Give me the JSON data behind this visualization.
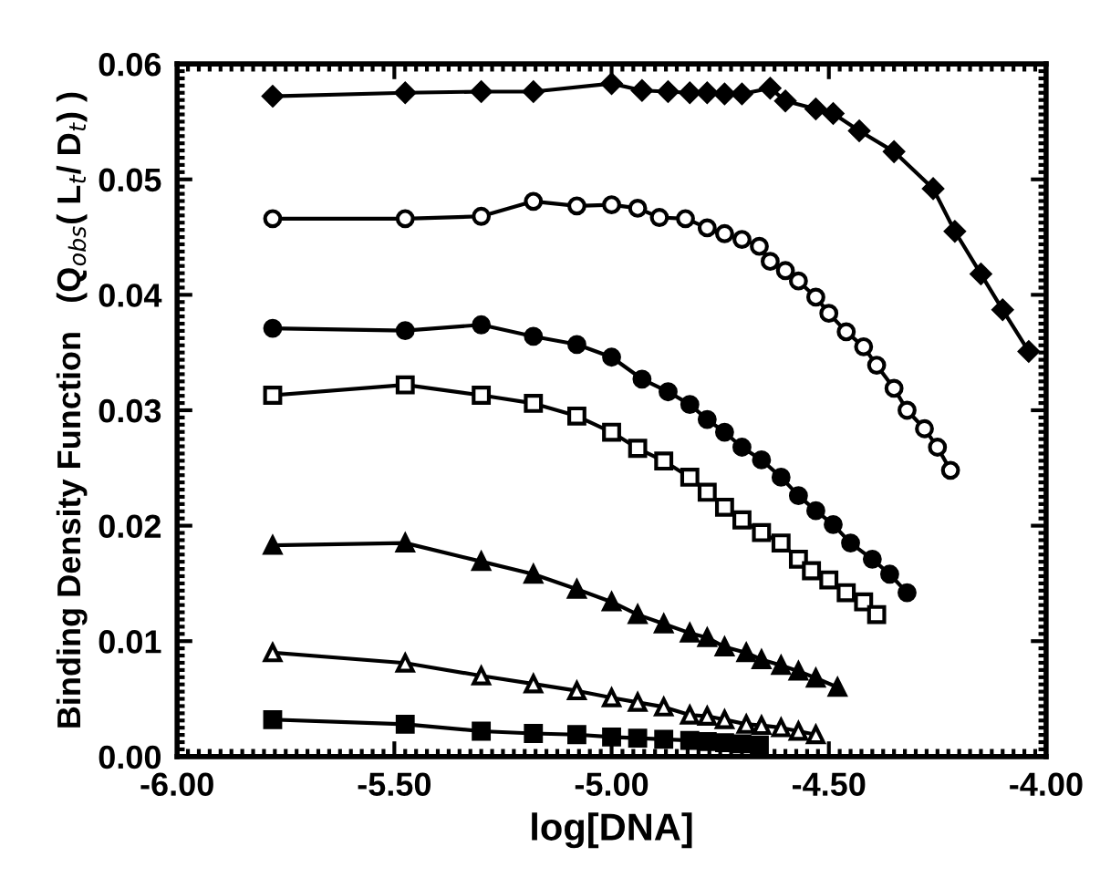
{
  "chart_data": {
    "type": "line",
    "xlabel": "log[DNA]",
    "ylabel": "Binding Density Function   (Q$_{obs}$( L$_{t}$/ D$_{t}$) )",
    "xlim": [
      -6.0,
      -4.0
    ],
    "ylim": [
      0.0,
      0.06
    ],
    "xticks": [
      {
        "value": -6.0,
        "label": "-6.00"
      },
      {
        "value": -5.5,
        "label": "-5.50"
      },
      {
        "value": -5.0,
        "label": "-5.00"
      },
      {
        "value": -4.5,
        "label": "-4.50"
      },
      {
        "value": -4.0,
        "label": "-4.00"
      }
    ],
    "yticks": [
      {
        "value": 0.0,
        "label": "0.00"
      },
      {
        "value": 0.01,
        "label": "0.01"
      },
      {
        "value": 0.02,
        "label": "0.02"
      },
      {
        "value": 0.03,
        "label": "0.03"
      },
      {
        "value": 0.04,
        "label": "0.04"
      },
      {
        "value": 0.05,
        "label": "0.05"
      },
      {
        "value": 0.06,
        "label": "0.06"
      }
    ],
    "grid": false,
    "line_style": "solid",
    "series": [
      {
        "color": "#000000",
        "marker": "diamond",
        "x": [
          -5.78,
          -5.475,
          -5.3,
          -5.18,
          -5.0,
          -4.93,
          -4.87,
          -4.82,
          -4.78,
          -4.74,
          -4.7,
          -4.635,
          -4.6,
          -4.53,
          -4.49,
          -4.43,
          -4.35,
          -4.26,
          -4.21,
          -4.15,
          -4.1,
          -4.04
        ],
        "values": [
          0.0572,
          0.0575,
          0.0576,
          0.0576,
          0.0583,
          0.0577,
          0.0576,
          0.0575,
          0.0575,
          0.0574,
          0.0574,
          0.0579,
          0.0568,
          0.0561,
          0.0557,
          0.0542,
          0.0524,
          0.0492,
          0.0455,
          0.0418,
          0.0387,
          0.0351
        ]
      },
      {
        "color": "#000000",
        "marker": "circle-open",
        "x": [
          -5.78,
          -5.475,
          -5.3,
          -5.18,
          -5.08,
          -5.0,
          -4.94,
          -4.89,
          -4.83,
          -4.78,
          -4.74,
          -4.7,
          -4.66,
          -4.635,
          -4.6,
          -4.57,
          -4.53,
          -4.5,
          -4.46,
          -4.42,
          -4.39,
          -4.35,
          -4.32,
          -4.28,
          -4.25,
          -4.22
        ],
        "values": [
          0.0466,
          0.0466,
          0.0468,
          0.0481,
          0.0477,
          0.0478,
          0.0475,
          0.0467,
          0.0466,
          0.0458,
          0.0453,
          0.0448,
          0.0442,
          0.0429,
          0.0421,
          0.0412,
          0.0398,
          0.0384,
          0.0368,
          0.0355,
          0.0339,
          0.0319,
          0.03,
          0.0284,
          0.0268,
          0.0248
        ]
      },
      {
        "color": "#000000",
        "marker": "circle",
        "x": [
          -5.78,
          -5.475,
          -5.3,
          -5.18,
          -5.08,
          -5.0,
          -4.93,
          -4.87,
          -4.82,
          -4.78,
          -4.74,
          -4.7,
          -4.655,
          -4.61,
          -4.57,
          -4.53,
          -4.49,
          -4.45,
          -4.4,
          -4.36,
          -4.32
        ],
        "values": [
          0.0371,
          0.0369,
          0.0374,
          0.0364,
          0.0357,
          0.0346,
          0.0327,
          0.0316,
          0.0305,
          0.0292,
          0.0281,
          0.0268,
          0.0257,
          0.0242,
          0.0226,
          0.0213,
          0.0201,
          0.0185,
          0.0171,
          0.0158,
          0.0142
        ]
      },
      {
        "color": "#000000",
        "marker": "square-open",
        "x": [
          -5.78,
          -5.475,
          -5.3,
          -5.18,
          -5.08,
          -5.0,
          -4.94,
          -4.88,
          -4.82,
          -4.78,
          -4.74,
          -4.7,
          -4.655,
          -4.61,
          -4.57,
          -4.54,
          -4.5,
          -4.46,
          -4.42,
          -4.39
        ],
        "values": [
          0.0313,
          0.0322,
          0.0313,
          0.0306,
          0.0295,
          0.0281,
          0.0267,
          0.0256,
          0.0242,
          0.0229,
          0.0216,
          0.0205,
          0.0194,
          0.0185,
          0.0171,
          0.0161,
          0.0153,
          0.0142,
          0.0134,
          0.0123
        ]
      },
      {
        "color": "#000000",
        "marker": "triangle",
        "x": [
          -5.78,
          -5.475,
          -5.3,
          -5.18,
          -5.08,
          -5.0,
          -4.94,
          -4.88,
          -4.82,
          -4.78,
          -4.74,
          -4.69,
          -4.655,
          -4.61,
          -4.57,
          -4.53,
          -4.48
        ],
        "values": [
          0.0183,
          0.0185,
          0.0169,
          0.0158,
          0.0145,
          0.0134,
          0.0123,
          0.0115,
          0.0107,
          0.0103,
          0.0095,
          0.009,
          0.0084,
          0.0079,
          0.0074,
          0.0068,
          0.006
        ]
      },
      {
        "color": "#000000",
        "marker": "triangle-open",
        "x": [
          -5.78,
          -5.475,
          -5.3,
          -5.18,
          -5.08,
          -5.0,
          -4.94,
          -4.88,
          -4.82,
          -4.78,
          -4.74,
          -4.69,
          -4.655,
          -4.61,
          -4.57,
          -4.53
        ],
        "values": [
          0.009,
          0.0081,
          0.007,
          0.0063,
          0.0057,
          0.0051,
          0.0047,
          0.0043,
          0.0036,
          0.0035,
          0.0032,
          0.0028,
          0.0027,
          0.0025,
          0.0022,
          0.0019
        ]
      },
      {
        "color": "#000000",
        "marker": "square",
        "x": [
          -5.78,
          -5.475,
          -5.3,
          -5.18,
          -5.08,
          -5.0,
          -4.94,
          -4.88,
          -4.82,
          -4.78,
          -4.74,
          -4.7,
          -4.66
        ],
        "values": [
          0.0032,
          0.0028,
          0.0022,
          0.002,
          0.0019,
          0.0017,
          0.0016,
          0.0015,
          0.0014,
          0.0013,
          0.0012,
          0.0011,
          0.001
        ]
      }
    ]
  }
}
